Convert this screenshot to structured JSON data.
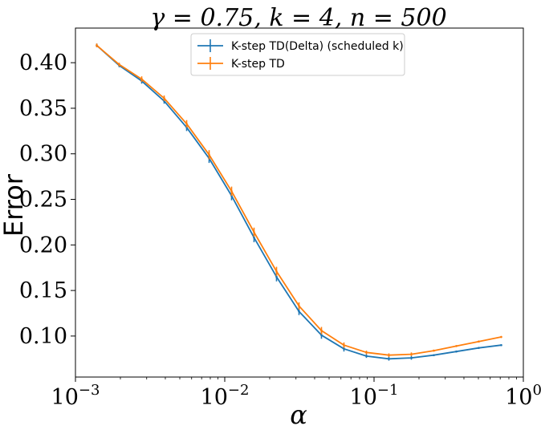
{
  "chart_data": {
    "type": "line",
    "title": "γ = 0.75, k = 4, n = 500",
    "xlabel": "α",
    "ylabel": "Error",
    "xscale": "log",
    "xlim": [
      0.001,
      1
    ],
    "ylim": [
      0.055,
      0.438
    ],
    "x_ticks": [
      {
        "value": 0.001,
        "base": "10",
        "exp": "−3"
      },
      {
        "value": 0.01,
        "base": "10",
        "exp": "−2"
      },
      {
        "value": 0.1,
        "base": "10",
        "exp": "−1"
      },
      {
        "value": 1,
        "base": "10",
        "exp": "0"
      }
    ],
    "y_ticks": [
      "0.10",
      "0.15",
      "0.20",
      "0.25",
      "0.30",
      "0.35",
      "0.40"
    ],
    "grid": false,
    "legend_position": "top-center",
    "x": [
      0.001389,
      0.001964,
      0.002778,
      0.003928,
      0.005556,
      0.007857,
      0.01111,
      0.01571,
      0.02222,
      0.03143,
      0.04444,
      0.06285,
      0.08889,
      0.1257,
      0.1778,
      0.2514,
      0.3556,
      0.5029,
      0.7113
    ],
    "series": [
      {
        "name": "K-step TD(Delta) (scheduled k)",
        "color": "#1f77b4",
        "values": [
          0.419,
          0.397,
          0.38,
          0.358,
          0.329,
          0.295,
          0.254,
          0.208,
          0.165,
          0.127,
          0.101,
          0.086,
          0.078,
          0.075,
          0.076,
          0.079,
          0.083,
          0.087,
          0.09
        ],
        "errors": [
          0.002,
          0.002,
          0.003,
          0.003,
          0.004,
          0.005,
          0.005,
          0.005,
          0.005,
          0.004,
          0.004,
          0.003,
          0.002,
          0.002,
          0.002,
          0.001,
          0.001,
          0.001,
          0.001
        ]
      },
      {
        "name": "K-step TD",
        "color": "#ff7f0e",
        "values": [
          0.419,
          0.398,
          0.382,
          0.361,
          0.333,
          0.299,
          0.259,
          0.214,
          0.171,
          0.133,
          0.106,
          0.09,
          0.082,
          0.079,
          0.08,
          0.084,
          0.089,
          0.094,
          0.099
        ],
        "errors": [
          0.002,
          0.002,
          0.003,
          0.003,
          0.004,
          0.005,
          0.005,
          0.005,
          0.005,
          0.004,
          0.004,
          0.003,
          0.002,
          0.002,
          0.002,
          0.001,
          0.001,
          0.001,
          0.001
        ]
      }
    ]
  }
}
